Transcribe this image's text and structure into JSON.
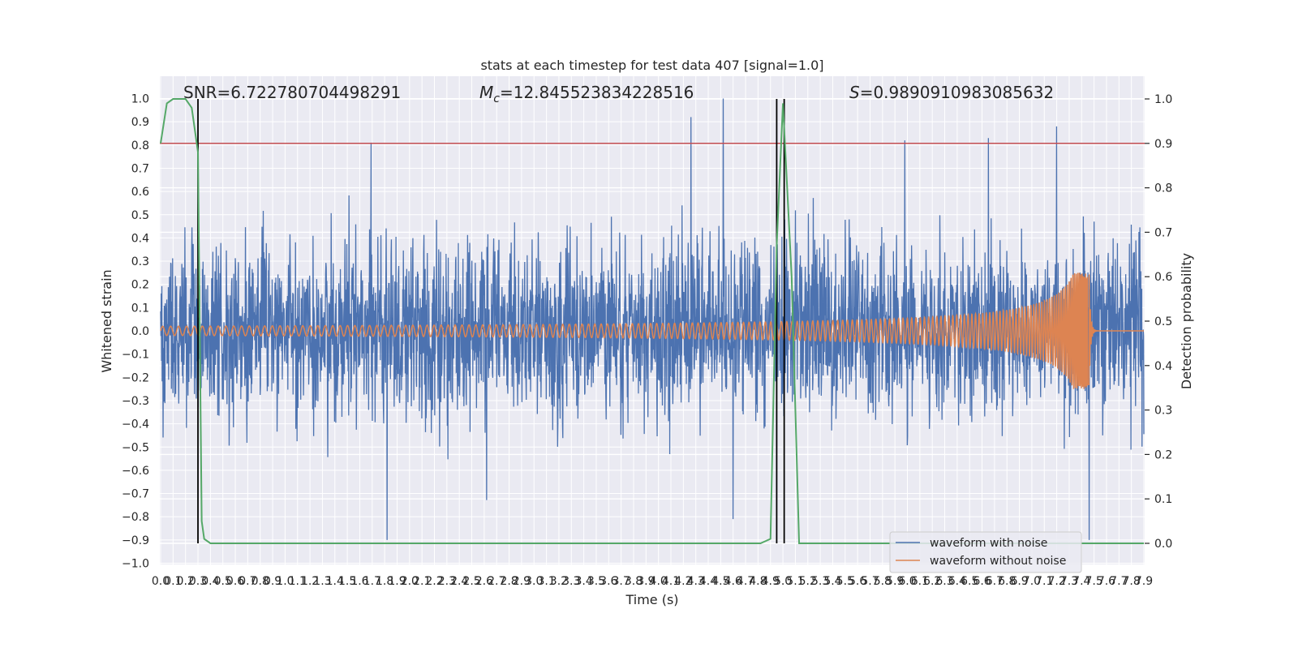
{
  "chart_data": {
    "type": "line",
    "title": "stats at each timestep for test data 407 [signal=1.0]",
    "xlabel": "Time (s)",
    "ylabel": "Whitened strain",
    "y2label": "Detection probability",
    "xlim": [
      0.0,
      7.9
    ],
    "ylim": [
      -1.0,
      1.0
    ],
    "y2lim": [
      0.0,
      1.0
    ],
    "grid": true,
    "legend_position": "lower-right",
    "x_ticks": [
      "0.0",
      "0.1",
      "0.2",
      "0.3",
      "0.4",
      "0.5",
      "0.6",
      "0.7",
      "0.8",
      "0.9",
      "1.0",
      "1.1",
      "1.2",
      "1.3",
      "1.4",
      "1.5",
      "1.6",
      "1.7",
      "1.8",
      "1.9",
      "2.0",
      "2.1",
      "2.2",
      "2.3",
      "2.4",
      "2.5",
      "2.6",
      "2.7",
      "2.8",
      "2.9",
      "3.0",
      "3.1",
      "3.2",
      "3.3",
      "3.4",
      "3.5",
      "3.6",
      "3.7",
      "3.8",
      "3.9",
      "4.0",
      "4.1",
      "4.2",
      "4.3",
      "4.4",
      "4.5",
      "4.6",
      "4.7",
      "4.8",
      "4.9",
      "5.0",
      "5.1",
      "5.2",
      "5.3",
      "5.4",
      "5.5",
      "5.6",
      "5.7",
      "5.8",
      "5.9",
      "6.0",
      "6.1",
      "6.2",
      "6.3",
      "6.4",
      "6.5",
      "6.6",
      "6.7",
      "6.8",
      "6.9",
      "7.0",
      "7.1",
      "7.2",
      "7.3",
      "7.4",
      "7.5",
      "7.6",
      "7.7",
      "7.8",
      "7.9"
    ],
    "y_ticks": [
      "1.0",
      "0.9",
      "0.8",
      "0.7",
      "0.6",
      "0.5",
      "0.4",
      "0.3",
      "0.2",
      "0.1",
      "0.0",
      "−0.1",
      "−0.2",
      "−0.3",
      "−0.4",
      "−0.5",
      "−0.6",
      "−0.7",
      "−0.8",
      "−0.9",
      "−1.0"
    ],
    "y2_ticks": [
      "1.0",
      "0.9",
      "0.8",
      "0.7",
      "0.6",
      "0.5",
      "0.4",
      "0.3",
      "0.2",
      "0.1",
      "0.0"
    ],
    "annotations": {
      "snr": "SNR=6.722780704498291",
      "mc_symbol": "M",
      "mc_sub": "c",
      "mc_value": "=12.845523834228516",
      "s_symbol": "S",
      "s_value": "=0.9890910983085632"
    },
    "series": [
      {
        "name": "waveform with noise",
        "color": "#4c72b0",
        "approx_amplitude": 0.35,
        "notable_peaks": [
          {
            "x": 1.69,
            "y": 0.81
          },
          {
            "x": 4.26,
            "y": 0.92
          },
          {
            "x": 4.52,
            "y": 1.0
          },
          {
            "x": 5.98,
            "y": 0.82
          },
          {
            "x": 6.65,
            "y": 0.83
          },
          {
            "x": 7.2,
            "y": 0.88
          }
        ],
        "notable_troughs": [
          {
            "x": 1.82,
            "y": -0.9
          },
          {
            "x": 4.6,
            "y": -0.81
          },
          {
            "x": 7.46,
            "y": -0.9
          }
        ]
      },
      {
        "name": "waveform without noise",
        "color": "#dd8452",
        "chirp_end_time": 7.46,
        "max_amplitude": 0.25
      },
      {
        "name": "detection probability",
        "color": "#55a868",
        "axis": "right",
        "x": [
          0.0,
          0.05,
          0.1,
          0.2,
          0.25,
          0.3,
          0.33,
          0.35,
          0.4,
          4.82,
          4.9,
          4.95,
          5.0,
          5.07,
          5.13,
          7.9
        ],
        "values": [
          0.9,
          0.99,
          1.0,
          1.0,
          0.98,
          0.88,
          0.05,
          0.01,
          0.0,
          0.0,
          0.01,
          0.67,
          0.99,
          0.6,
          0.0,
          0.0
        ]
      }
    ],
    "threshold_line": {
      "color": "#c44e52",
      "y2": 0.9
    },
    "vertical_lines": {
      "color": "#000000",
      "x": [
        0.3,
        4.95,
        5.01
      ]
    }
  }
}
